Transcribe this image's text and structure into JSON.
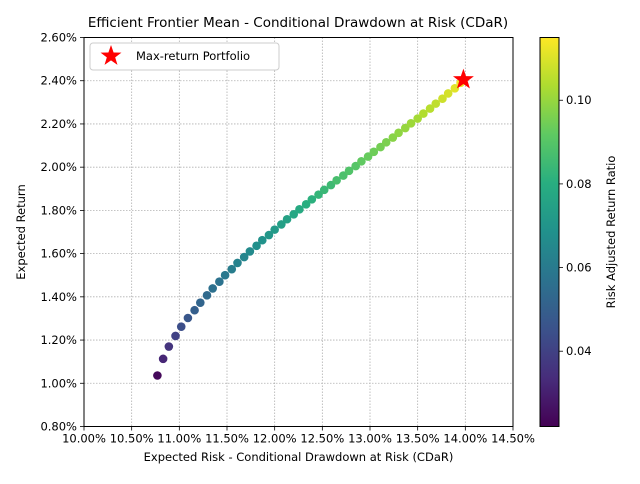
{
  "chart_data": {
    "type": "scatter",
    "title": "Efficient Frontier Mean - Conditional Drawdown at Risk (CDaR)",
    "xlabel": "Expected Risk - Conditional Drawdown at Risk (CDaR)",
    "ylabel": "Expected Return",
    "colorbar_label": "Risk Adjusted Return Ratio",
    "xlim": [
      0.1,
      0.145
    ],
    "ylim": [
      0.008,
      0.026
    ],
    "x_ticks": [
      0.1,
      0.105,
      0.11,
      0.115,
      0.12,
      0.125,
      0.13,
      0.135,
      0.14,
      0.145
    ],
    "x_tick_labels": [
      "10.00%",
      "10.50%",
      "11.00%",
      "11.50%",
      "12.00%",
      "12.50%",
      "13.00%",
      "13.50%",
      "14.00%",
      "14.50%"
    ],
    "y_ticks": [
      0.008,
      0.01,
      0.012,
      0.014,
      0.016,
      0.018,
      0.02,
      0.022,
      0.024,
      0.026
    ],
    "y_tick_labels": [
      "0.80%",
      "1.00%",
      "1.20%",
      "1.40%",
      "1.60%",
      "1.80%",
      "2.00%",
      "2.20%",
      "2.40%",
      "2.60%"
    ],
    "colorbar_range": [
      0.022,
      0.115
    ],
    "colorbar_ticks": [
      0.04,
      0.06,
      0.08,
      0.1
    ],
    "colorbar_tick_labels": [
      "0.04",
      "0.06",
      "0.08",
      "0.10"
    ],
    "colormap": "viridis",
    "grid": true,
    "legend": {
      "position": "top-left",
      "entries": [
        "Max-return Portfolio"
      ]
    },
    "series": [
      {
        "marker": "circle",
        "x": [
          0.1077,
          0.1083,
          0.1089,
          0.1096,
          0.1102,
          0.1109,
          0.1116,
          0.1122,
          0.1129,
          0.1135,
          0.1142,
          0.1148,
          0.1155,
          0.1161,
          0.1168,
          0.1174,
          0.1181,
          0.1187,
          0.1194,
          0.12,
          0.1207,
          0.1213,
          0.122,
          0.1226,
          0.1233,
          0.1239,
          0.1246,
          0.1252,
          0.1259,
          0.1265,
          0.1272,
          0.1278,
          0.1285,
          0.1291,
          0.1298,
          0.1304,
          0.1311,
          0.1317,
          0.1324,
          0.133,
          0.1337,
          0.1343,
          0.135,
          0.1356,
          0.1363,
          0.1369,
          0.1376,
          0.1382,
          0.1389,
          0.1395
        ],
        "y": [
          0.01036,
          0.01113,
          0.0117,
          0.01219,
          0.01262,
          0.01302,
          0.01338,
          0.01373,
          0.01407,
          0.01439,
          0.0147,
          0.015,
          0.01528,
          0.01557,
          0.01584,
          0.0161,
          0.01636,
          0.01662,
          0.01686,
          0.01711,
          0.01735,
          0.01759,
          0.01782,
          0.01805,
          0.01828,
          0.01851,
          0.01873,
          0.01895,
          0.01917,
          0.01939,
          0.01961,
          0.01983,
          0.02005,
          0.02027,
          0.02049,
          0.02071,
          0.02093,
          0.02115,
          0.02137,
          0.02159,
          0.02181,
          0.02203,
          0.02225,
          0.02248,
          0.02271,
          0.02294,
          0.02317,
          0.02341,
          0.02365,
          0.0239
        ],
        "color_value": [
          0.024,
          0.032,
          0.036,
          0.04,
          0.044,
          0.047,
          0.05,
          0.052,
          0.054,
          0.056,
          0.057,
          0.059,
          0.061,
          0.063,
          0.064,
          0.066,
          0.068,
          0.069,
          0.071,
          0.072,
          0.074,
          0.075,
          0.077,
          0.078,
          0.08,
          0.081,
          0.083,
          0.084,
          0.085,
          0.087,
          0.088,
          0.089,
          0.09,
          0.092,
          0.093,
          0.094,
          0.095,
          0.096,
          0.098,
          0.099,
          0.1,
          0.101,
          0.102,
          0.104,
          0.105,
          0.106,
          0.108,
          0.109,
          0.111,
          0.113
        ]
      },
      {
        "name": "Max-return Portfolio",
        "marker": "star",
        "color": "#ff0000",
        "x": [
          0.1398
        ],
        "y": [
          0.02405
        ]
      }
    ]
  }
}
